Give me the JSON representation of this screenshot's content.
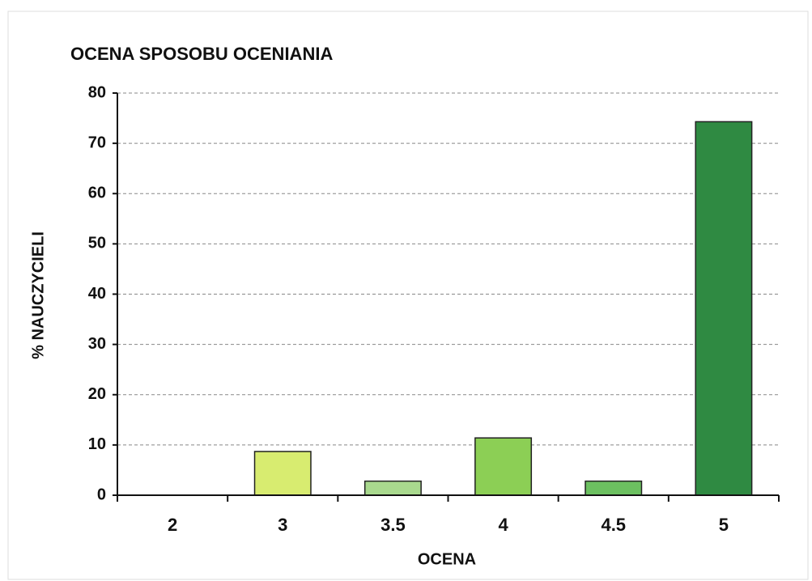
{
  "chart_data": {
    "type": "bar",
    "title": "OCENA SPOSOBU OCENIANIA",
    "x_label": "OCENA",
    "y_label": "% NAUCZYCIELI",
    "categories": [
      "2",
      "3",
      "3.5",
      "4",
      "4.5",
      "5"
    ],
    "values": [
      0,
      8.7,
      2.8,
      11.4,
      2.8,
      74.3
    ],
    "colors": [
      "#d8ec70",
      "#d8ec70",
      "#a9d98e",
      "#8ccf55",
      "#6cc060",
      "#2f8a42"
    ],
    "ylim": [
      0,
      80
    ],
    "yticks": [
      0,
      10,
      20,
      30,
      40,
      50,
      60,
      70,
      80
    ],
    "grid": true
  }
}
